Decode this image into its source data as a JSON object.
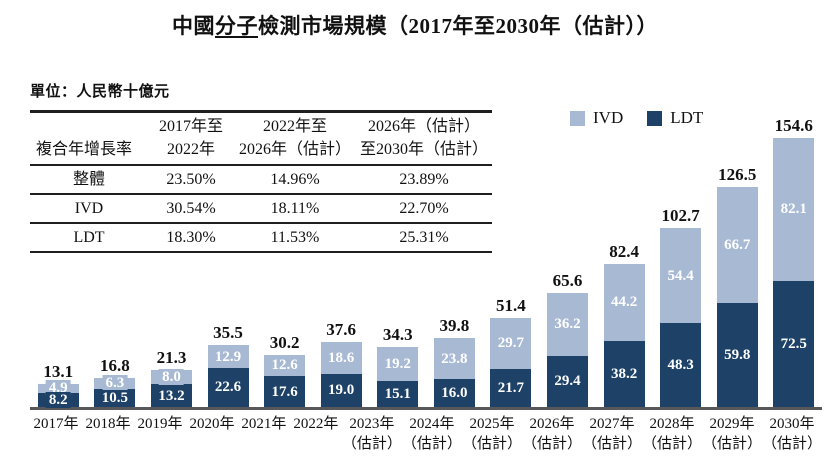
{
  "title": {
    "prefix": "中國",
    "underlined": "分子",
    "suffix": "檢測市場規模（2017年至2030年（估計））"
  },
  "unit_label": "單位：人民幣十億元",
  "cagr_table": {
    "header": [
      [
        "",
        "複合年增長率"
      ],
      [
        "2017年至",
        "2022年"
      ],
      [
        "2022年至",
        "2026年（估計）"
      ],
      [
        "2026年（估計）",
        "至2030年（估計）"
      ]
    ],
    "rows": [
      [
        "整體",
        "23.50%",
        "14.96%",
        "23.89%"
      ],
      [
        "IVD",
        "30.54%",
        "18.11%",
        "22.70%"
      ],
      [
        "LDT",
        "18.30%",
        "11.53%",
        "25.31%"
      ]
    ]
  },
  "legend": {
    "items": [
      {
        "label": "IVD",
        "color": "#a8b9d3"
      },
      {
        "label": "LDT",
        "color": "#1d4167"
      }
    ]
  },
  "chart_data": {
    "type": "bar",
    "stacked": true,
    "title": "中國分子檢測市場規模（2017年至2030年（估計））",
    "unit": "人民幣十億元",
    "grid": false,
    "legend_position": "top-right",
    "categories": [
      "2017年",
      "2018年",
      "2019年",
      "2020年",
      "2021年",
      "2022年",
      "2023年",
      "2024年",
      "2025年",
      "2026年",
      "2027年",
      "2028年",
      "2029年",
      "2030年"
    ],
    "category_notes": [
      "",
      "",
      "",
      "",
      "",
      "",
      "（估計）",
      "（估計）",
      "（估計）",
      "（估計）",
      "（估計）",
      "（估計）",
      "（估計）",
      "（估計）"
    ],
    "series": [
      {
        "name": "IVD",
        "color": "#a8b9d3",
        "values": [
          4.9,
          6.3,
          8.0,
          12.9,
          12.6,
          18.6,
          19.2,
          23.8,
          29.7,
          36.2,
          44.2,
          54.4,
          66.7,
          82.1
        ]
      },
      {
        "name": "LDT",
        "color": "#1d4167",
        "values": [
          8.2,
          10.5,
          13.2,
          22.6,
          17.6,
          19.0,
          15.1,
          16.0,
          21.7,
          29.4,
          38.2,
          48.3,
          59.8,
          72.5
        ]
      }
    ],
    "totals": [
      13.1,
      16.8,
      21.3,
      35.5,
      30.2,
      37.6,
      34.3,
      39.8,
      51.4,
      65.6,
      82.4,
      102.7,
      126.5,
      154.6
    ]
  },
  "colors": {
    "ivd": "#a8b9d3",
    "ldt": "#1d4167",
    "axis": "#58585a",
    "text": "#111111"
  }
}
